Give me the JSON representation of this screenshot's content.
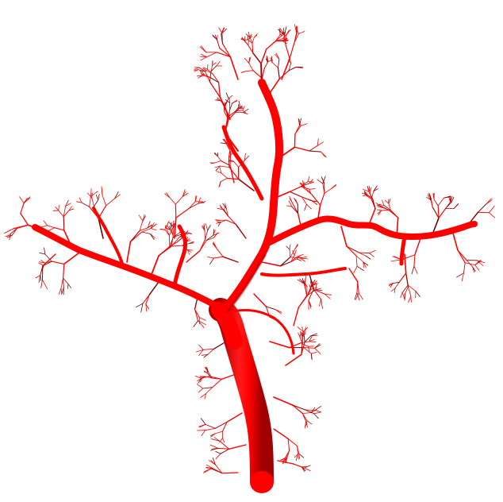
{
  "scene": {
    "subject": "branching-vessel-tree",
    "colors": {
      "background": "#ffffff",
      "vessel": "#ff0000",
      "vessel_shade": "#a80000",
      "vessel_dark": "#6a0000",
      "vessel_highlight": "#ff6a6a"
    }
  }
}
